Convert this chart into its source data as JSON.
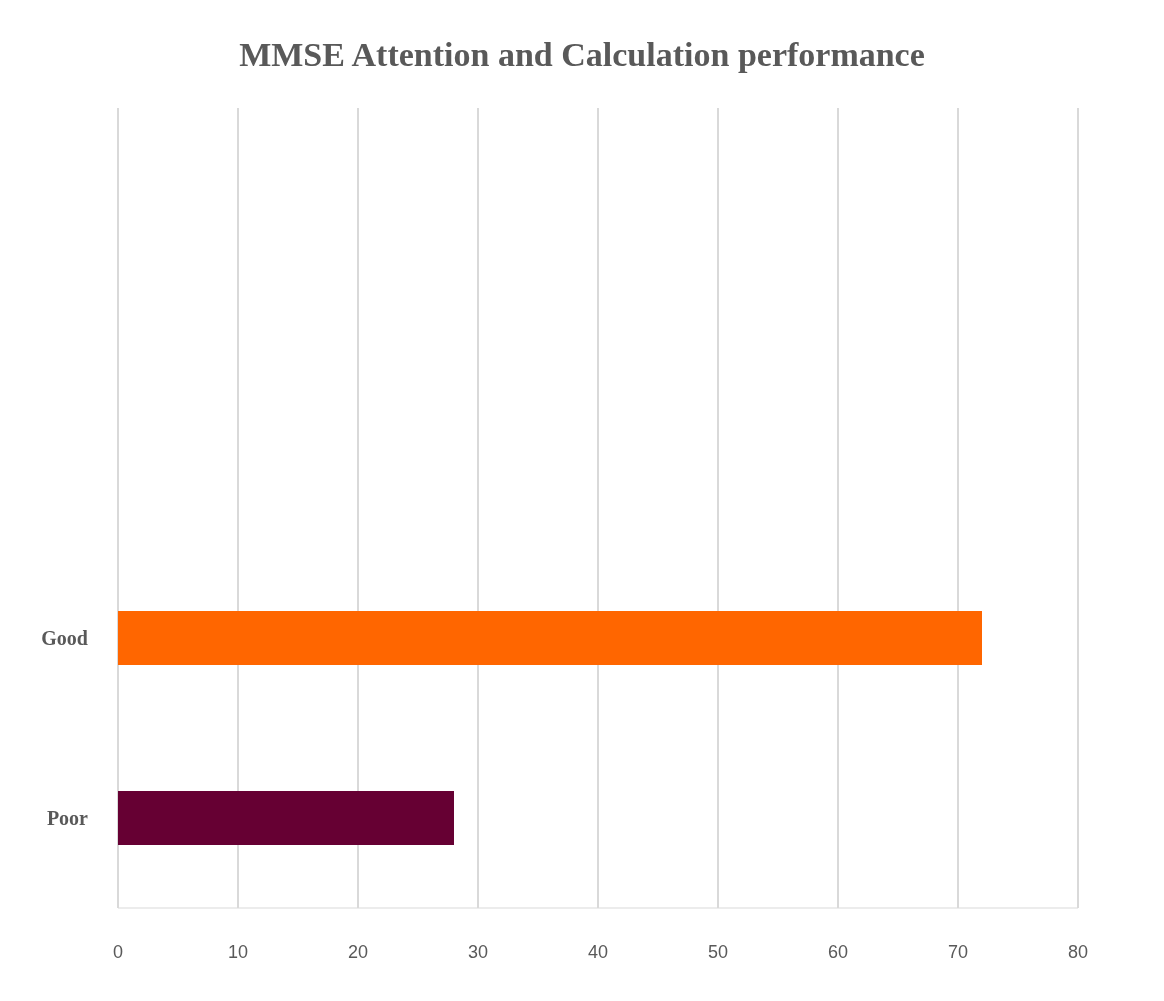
{
  "chart_data": {
    "type": "bar",
    "orientation": "horizontal",
    "title": "MMSE Attention and Calculation performance",
    "categories": [
      "Good",
      "Poor"
    ],
    "values": [
      72,
      28
    ],
    "colors": [
      "#ff6600",
      "#660033"
    ],
    "xlim": [
      0,
      80
    ],
    "xticks": [
      0,
      10,
      20,
      30,
      40,
      50,
      60,
      70,
      80
    ],
    "grid": "x"
  }
}
